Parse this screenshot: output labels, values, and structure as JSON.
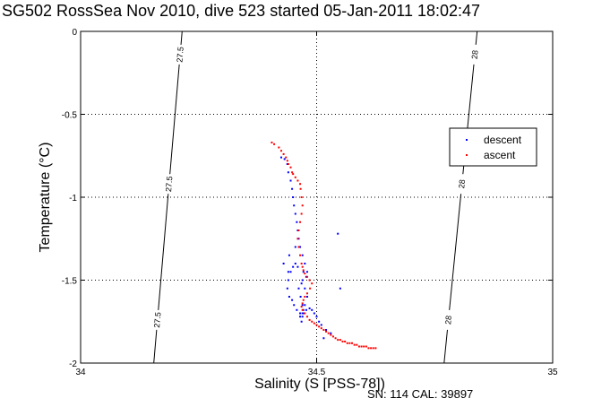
{
  "chart_data": {
    "type": "scatter",
    "title": "SG502 RossSea Nov 2010, dive 523 started 05-Jan-2011 18:02:47",
    "xlabel": "Salinity (S [PSS-78])",
    "ylabel": "Temperature (°C)",
    "xlim": [
      34,
      35
    ],
    "ylim": [
      -2,
      0
    ],
    "x_ticks": [
      "34",
      "34.5",
      "35"
    ],
    "y_ticks": [
      "0",
      "-0.5",
      "-1",
      "-1.5",
      "-2"
    ],
    "grid": "dotted",
    "legend_position": "right-upper",
    "series": [
      {
        "name": "descent",
        "color": "#0000ff",
        "x": [
          34.425,
          34.432,
          34.438,
          34.44,
          34.445,
          34.448,
          34.45,
          34.452,
          34.455,
          34.458,
          34.46,
          34.462,
          34.465,
          34.47,
          34.475,
          34.48,
          34.478,
          34.472,
          34.46,
          34.455,
          34.45,
          34.445,
          34.44,
          34.438,
          34.442,
          34.448,
          34.452,
          34.458,
          34.465,
          34.47,
          34.472,
          34.47,
          34.466,
          34.462,
          34.468,
          34.47,
          34.475,
          34.48,
          34.475,
          34.47,
          34.465,
          34.468,
          34.472,
          34.478,
          34.485,
          34.49,
          34.495,
          34.5,
          34.505,
          34.51,
          34.52,
          34.53,
          34.44,
          34.43,
          34.442,
          34.455,
          34.515,
          34.545,
          34.55
        ],
        "y": [
          -0.76,
          -0.77,
          -0.8,
          -0.85,
          -0.9,
          -0.95,
          -1.0,
          -1.05,
          -1.1,
          -1.15,
          -1.2,
          -1.25,
          -1.3,
          -1.35,
          -1.4,
          -1.45,
          -1.48,
          -1.45,
          -1.42,
          -1.4,
          -1.42,
          -1.45,
          -1.5,
          -1.55,
          -1.6,
          -1.62,
          -1.65,
          -1.68,
          -1.7,
          -1.72,
          -1.68,
          -1.65,
          -1.6,
          -1.55,
          -1.52,
          -1.5,
          -1.55,
          -1.6,
          -1.65,
          -1.7,
          -1.72,
          -1.75,
          -1.7,
          -1.68,
          -1.67,
          -1.68,
          -1.7,
          -1.72,
          -1.75,
          -1.77,
          -1.8,
          -1.82,
          -1.45,
          -1.4,
          -1.35,
          -1.3,
          -1.85,
          -1.22,
          -1.55
        ]
      },
      {
        "name": "ascent",
        "color": "#ff0000",
        "x": [
          34.405,
          34.41,
          34.42,
          34.425,
          34.43,
          34.435,
          34.438,
          34.44,
          34.445,
          34.448,
          34.45,
          34.455,
          34.46,
          34.465,
          34.466,
          34.468,
          34.47,
          34.468,
          34.465,
          34.462,
          34.46,
          34.462,
          34.465,
          34.468,
          34.47,
          34.472,
          34.475,
          34.48,
          34.485,
          34.49,
          34.486,
          34.48,
          34.475,
          34.472,
          34.47,
          34.468,
          34.47,
          34.475,
          34.48,
          34.485,
          34.49,
          34.495,
          34.5,
          34.505,
          34.51,
          34.515,
          34.52,
          34.525,
          34.53,
          34.535,
          34.54,
          34.545,
          34.55,
          34.555,
          34.56,
          34.565,
          34.57,
          34.575,
          34.58,
          34.585,
          34.59,
          34.595,
          34.6,
          34.605,
          34.61,
          34.615,
          34.62,
          34.625
        ],
        "y": [
          -0.67,
          -0.68,
          -0.7,
          -0.72,
          -0.74,
          -0.76,
          -0.78,
          -0.8,
          -0.82,
          -0.85,
          -0.86,
          -0.88,
          -0.9,
          -0.92,
          -0.95,
          -1.0,
          -1.05,
          -1.1,
          -1.15,
          -1.2,
          -1.25,
          -1.3,
          -1.35,
          -1.4,
          -1.42,
          -1.44,
          -1.46,
          -1.48,
          -1.5,
          -1.52,
          -1.55,
          -1.58,
          -1.6,
          -1.62,
          -1.64,
          -1.66,
          -1.68,
          -1.7,
          -1.72,
          -1.74,
          -1.75,
          -1.76,
          -1.77,
          -1.78,
          -1.79,
          -1.8,
          -1.81,
          -1.82,
          -1.83,
          -1.84,
          -1.85,
          -1.86,
          -1.86,
          -1.87,
          -1.87,
          -1.88,
          -1.88,
          -1.88,
          -1.89,
          -1.89,
          -1.9,
          -1.9,
          -1.9,
          -1.9,
          -1.91,
          -1.91,
          -1.91,
          -1.91
        ]
      }
    ],
    "isopycnals": [
      {
        "label": "27.5",
        "x_at_top": 34.215,
        "x_at_bottom": 34.155
      },
      {
        "label": "28",
        "x_at_top": 34.84,
        "x_at_bottom": 34.77
      }
    ]
  },
  "footer": {
    "serial": "SN: 114  CAL: 39897"
  },
  "colors": {
    "descent": "#0000ff",
    "ascent": "#ff0000",
    "axis": "#000000"
  }
}
